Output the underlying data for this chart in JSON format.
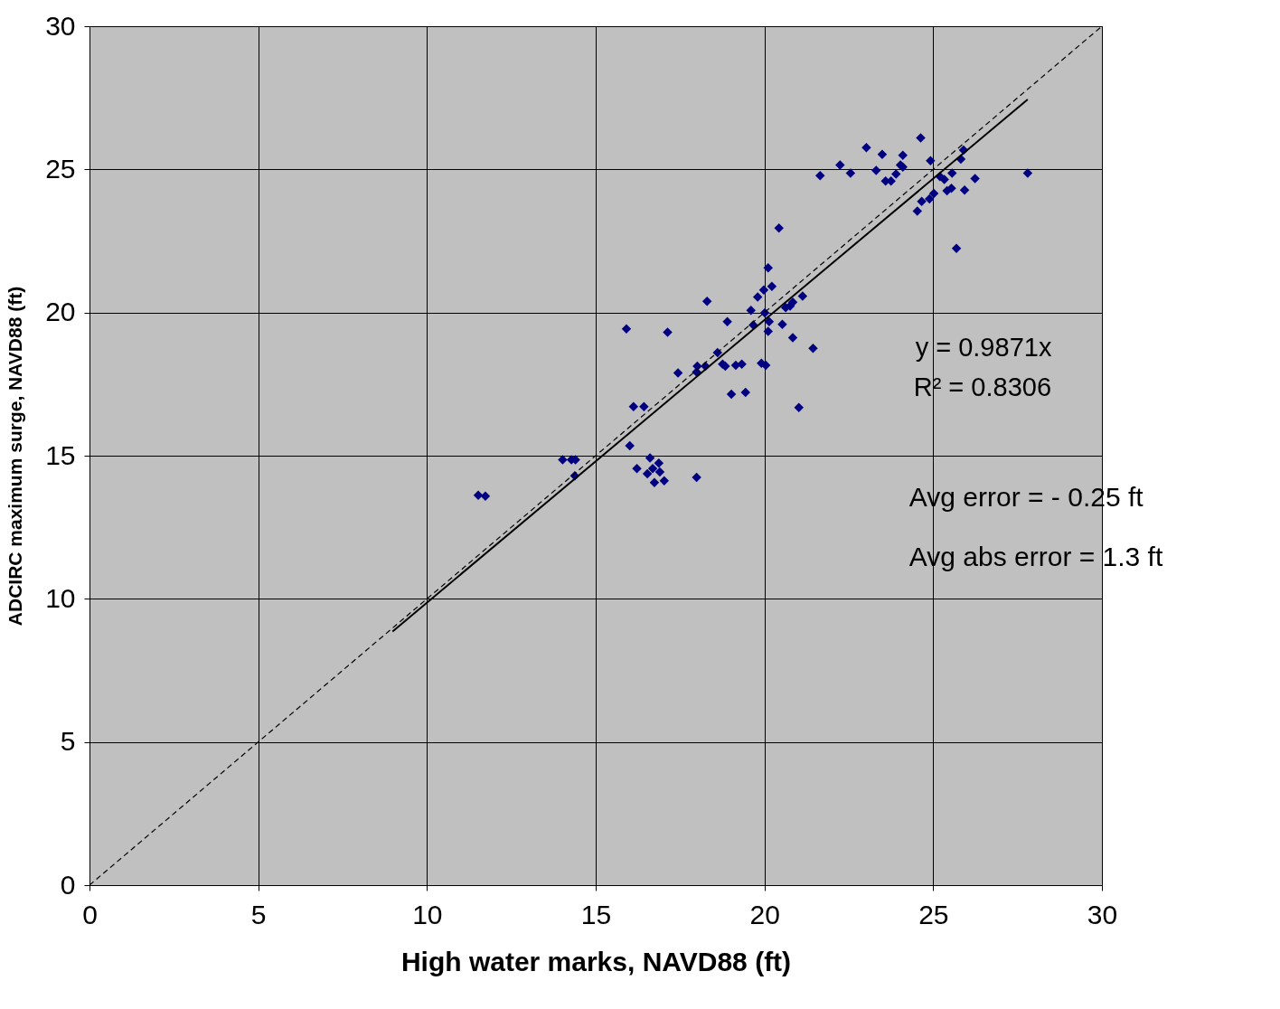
{
  "chart_data": {
    "type": "scatter",
    "xlabel": "High water marks, NAVD88 (ft)",
    "ylabel": "ADCIRC maximum surge, NAVD88 (ft)",
    "xlim": [
      0,
      30
    ],
    "ylim": [
      0,
      30
    ],
    "xticks": [
      0,
      5,
      10,
      15,
      20,
      25,
      30
    ],
    "yticks": [
      0,
      5,
      10,
      15,
      20,
      25,
      30
    ],
    "grid": true,
    "marker": "diamond",
    "annotations": [
      "y = 0.9871x",
      "R² = 0.8306",
      "Avg error = - 0.25 ft",
      "Avg abs error =  1.3 ft"
    ],
    "series": [
      {
        "color": "#000080",
        "x": [
          11.52,
          11.73,
          14.02,
          14.28,
          14.4,
          14.38,
          15.91,
          16.01,
          16.12,
          16.43,
          16.22,
          16.61,
          16.53,
          16.69,
          16.74,
          16.87,
          16.9,
          17.03,
          17.13,
          17.44,
          17.99,
          17.99,
          18.01,
          18.25,
          18.3,
          18.61,
          18.76,
          18.84,
          18.9,
          19.02,
          19.15,
          19.33,
          19.44,
          19.6,
          19.67,
          19.8,
          19.91,
          20.01,
          19.98,
          20.04,
          20.11,
          20.14,
          20.11,
          20.22,
          20.43,
          20.53,
          20.63,
          20.76,
          20.84,
          20.84,
          21.02,
          21.13,
          21.44,
          21.65,
          22.24,
          22.55,
          23.02,
          23.31,
          23.49,
          23.59,
          23.75,
          23.9,
          24.03,
          24.1,
          24.1,
          24.53,
          24.63,
          24.66,
          24.92,
          24.89,
          25.02,
          25.2,
          25.33,
          25.41,
          25.56,
          25.54,
          25.69,
          25.82,
          25.9,
          25.93,
          26.24,
          27.8
        ],
        "values": [
          13.62,
          13.59,
          14.86,
          14.86,
          14.86,
          14.3,
          19.43,
          15.35,
          16.71,
          16.71,
          14.55,
          14.92,
          14.37,
          14.55,
          14.06,
          14.74,
          14.43,
          14.12,
          19.31,
          17.89,
          14.24,
          17.92,
          18.13,
          18.13,
          20.39,
          18.6,
          18.2,
          18.13,
          19.68,
          17.15,
          18.16,
          18.2,
          17.21,
          20.08,
          19.56,
          20.54,
          18.23,
          19.99,
          20.79,
          18.16,
          21.56,
          19.68,
          19.34,
          20.91,
          22.95,
          19.59,
          20.17,
          20.23,
          20.36,
          19.12,
          16.68,
          20.57,
          18.75,
          24.78,
          25.15,
          24.87,
          25.76,
          24.96,
          25.52,
          24.59,
          24.59,
          24.84,
          25.15,
          25.49,
          25.08,
          23.54,
          26.1,
          23.88,
          25.3,
          23.97,
          24.16,
          24.75,
          24.65,
          24.25,
          24.87,
          24.34,
          22.24,
          25.36,
          25.67,
          24.28,
          24.68,
          24.87
        ]
      },
      {
        "type": "line",
        "marker": "none",
        "color": "#000000",
        "line_style": "solid",
        "x": [
          8.98,
          27.8
        ],
        "values": [
          8.86,
          27.44
        ]
      },
      {
        "type": "line",
        "marker": "none",
        "color": "#000000",
        "line_style": "dashed",
        "x": [
          0,
          30
        ],
        "values": [
          0,
          30
        ]
      }
    ]
  }
}
